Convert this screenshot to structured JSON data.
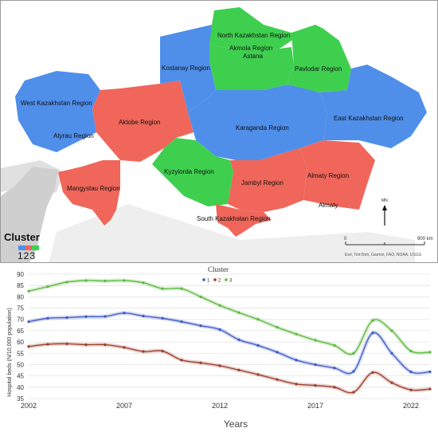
{
  "map": {
    "regions": [
      {
        "name": "North Kazakhstan Region",
        "cluster": 3
      },
      {
        "name": "Akmola Region",
        "cluster": 3
      },
      {
        "name": "Pavlodar Region",
        "cluster": 3
      },
      {
        "name": "Kostanay Region",
        "cluster": 1
      },
      {
        "name": "West Kazakhstan Region",
        "cluster": 1
      },
      {
        "name": "Aktobe Region",
        "cluster": 2
      },
      {
        "name": "Atyrau Region",
        "cluster": 1
      },
      {
        "name": "Karaganda Region",
        "cluster": 1
      },
      {
        "name": "East Kazakhstan Region",
        "cluster": 1
      },
      {
        "name": "Kyzylorda Region",
        "cluster": 3
      },
      {
        "name": "Mangystau Region",
        "cluster": 2
      },
      {
        "name": "Jambyl Region",
        "cluster": 2
      },
      {
        "name": "Almaty Region",
        "cluster": 2
      },
      {
        "name": "South Kazakhstan Region",
        "cluster": 2
      }
    ],
    "cities": [
      "Astana",
      "Almaty"
    ],
    "north_label": "MN",
    "scale_start": "0",
    "scale_end": "900 km",
    "attribution": "Esri, TomTom, Garmin, FAO, NOAA, USGS",
    "cluster_title": "Cluster",
    "cluster_numbers": "123",
    "cluster_colors": {
      "1": "#4f8fea",
      "2": "#f0665a",
      "3": "#3fcf4f"
    }
  },
  "chart_data": {
    "type": "line",
    "legend_title": "Cluster",
    "ylabel": "Hospital beds (N/10,000 population)",
    "xlabel": "Years",
    "xlim": [
      2002,
      2023
    ],
    "ylim": [
      35,
      90
    ],
    "yticks": [
      35,
      40,
      45,
      50,
      55,
      60,
      65,
      70,
      75,
      80,
      85,
      90
    ],
    "xticks": [
      2002,
      2007,
      2012,
      2017,
      2022
    ],
    "x": [
      2002,
      2003,
      2004,
      2005,
      2006,
      2007,
      2008,
      2009,
      2010,
      2011,
      2012,
      2013,
      2014,
      2015,
      2016,
      2017,
      2018,
      2019,
      2020,
      2021,
      2022,
      2023
    ],
    "series": [
      {
        "name": "1",
        "color": "#3b57c4",
        "values": [
          69,
          70.5,
          70.8,
          71.2,
          71.3,
          72.8,
          71.5,
          70.5,
          69,
          67.2,
          65.5,
          61,
          58.5,
          55.5,
          52,
          50,
          48.5,
          47,
          64,
          55,
          46.8,
          46.8
        ]
      },
      {
        "name": "2",
        "color": "#9c3a28",
        "values": [
          58,
          59,
          59.2,
          58.8,
          58.8,
          57.6,
          55.8,
          56,
          52,
          50.8,
          49.5,
          47.6,
          45.6,
          43.4,
          41.4,
          40.8,
          40,
          37.8,
          46.5,
          42,
          38.8,
          39.2
        ]
      },
      {
        "name": "3",
        "color": "#5cb83c",
        "values": [
          82.5,
          84.5,
          86.5,
          87.2,
          87,
          87.2,
          86.2,
          83.6,
          83.6,
          80,
          76.2,
          73,
          70,
          66.5,
          63.5,
          60.8,
          58.5,
          55,
          69.5,
          65,
          56,
          55.5
        ]
      }
    ]
  }
}
